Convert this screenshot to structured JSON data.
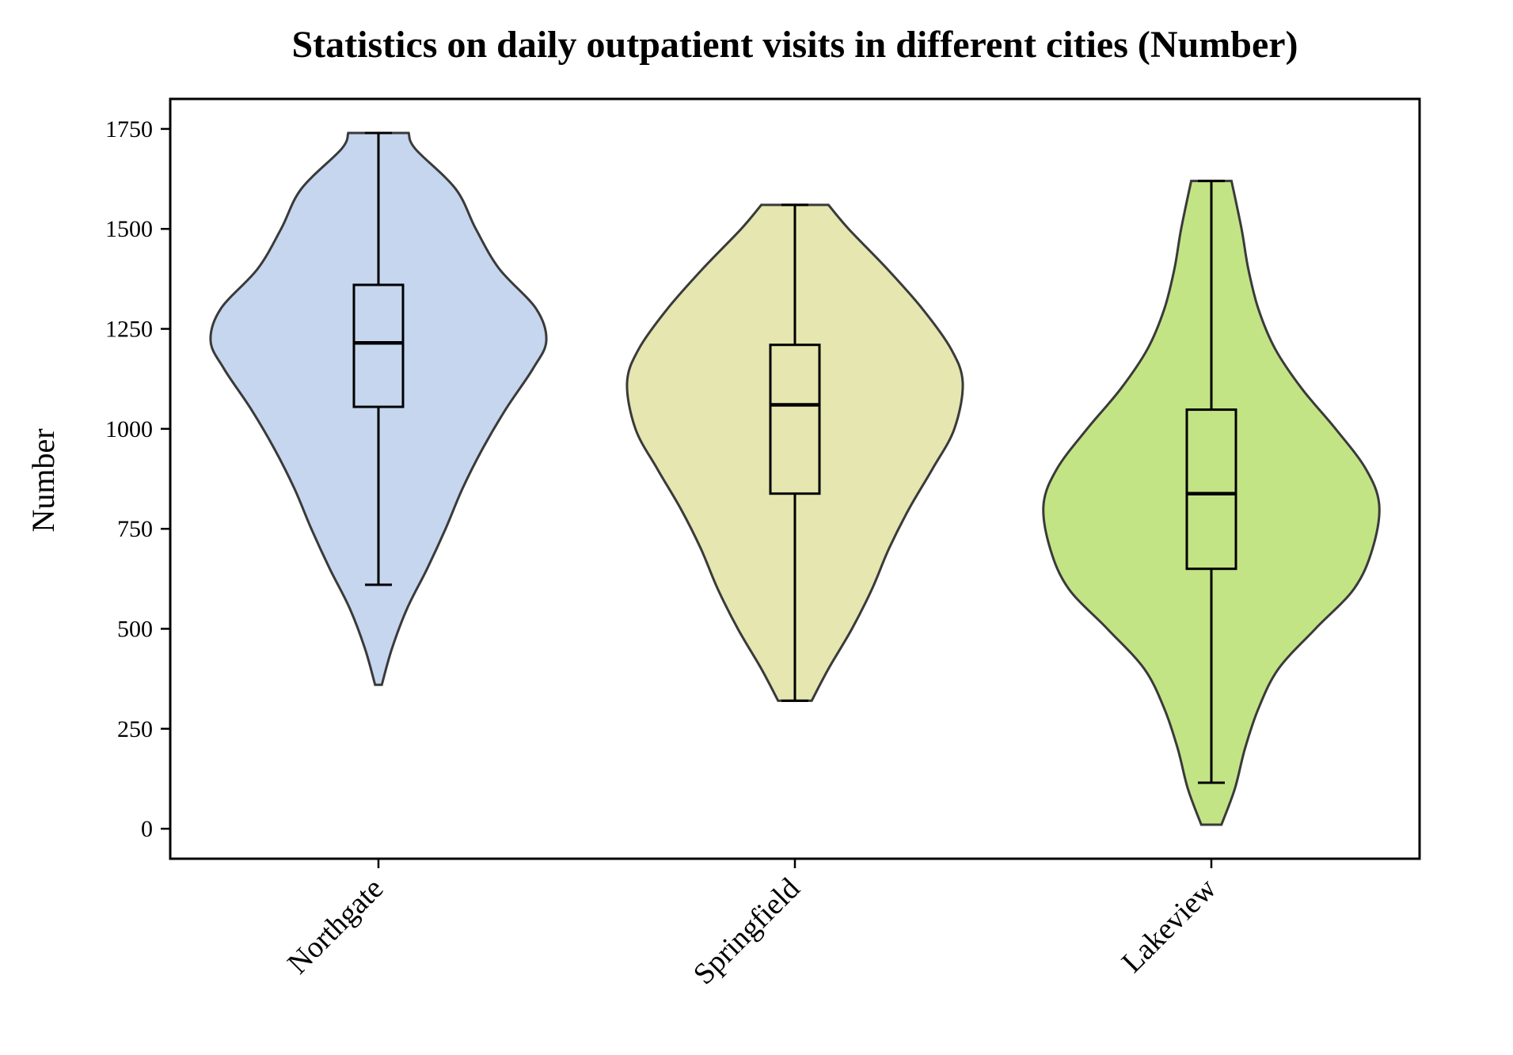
{
  "chart_data": {
    "type": "violin",
    "title": "Statistics on daily outpatient visits in different cities (Number)",
    "xlabel": "",
    "ylabel": "Number",
    "ylim": [
      -75,
      1825
    ],
    "yticks": [
      0,
      250,
      500,
      750,
      1000,
      1250,
      1500,
      1750
    ],
    "categories": [
      "Northgate",
      "Springfield",
      "Lakeview"
    ],
    "series": [
      {
        "category": "Northgate",
        "color": "#c5d6ee",
        "min": 360,
        "max": 1740,
        "whisker_low": 610,
        "whisker_high": 1740,
        "q1": 1055,
        "median": 1215,
        "q3": 1360,
        "density": [
          [
            360,
            0.02
          ],
          [
            450,
            0.08
          ],
          [
            550,
            0.17
          ],
          [
            650,
            0.29
          ],
          [
            750,
            0.4
          ],
          [
            850,
            0.5
          ],
          [
            950,
            0.62
          ],
          [
            1050,
            0.76
          ],
          [
            1150,
            0.92
          ],
          [
            1220,
            1.0
          ],
          [
            1300,
            0.94
          ],
          [
            1400,
            0.72
          ],
          [
            1500,
            0.58
          ],
          [
            1600,
            0.46
          ],
          [
            1700,
            0.22
          ],
          [
            1740,
            0.18
          ]
        ]
      },
      {
        "category": "Springfield",
        "color": "#e5e6b0",
        "min": 320,
        "max": 1560,
        "whisker_low": 320,
        "whisker_high": 1560,
        "q1": 838,
        "median": 1060,
        "q3": 1210,
        "density": [
          [
            320,
            0.1
          ],
          [
            400,
            0.2
          ],
          [
            500,
            0.34
          ],
          [
            600,
            0.46
          ],
          [
            700,
            0.56
          ],
          [
            800,
            0.68
          ],
          [
            900,
            0.82
          ],
          [
            1000,
            0.95
          ],
          [
            1115,
            1.0
          ],
          [
            1200,
            0.93
          ],
          [
            1300,
            0.76
          ],
          [
            1400,
            0.55
          ],
          [
            1500,
            0.32
          ],
          [
            1560,
            0.2
          ]
        ]
      },
      {
        "category": "Lakeview",
        "color": "#c3e485",
        "min": 10,
        "max": 1620,
        "whisker_low": 115,
        "whisker_high": 1620,
        "q1": 650,
        "median": 838,
        "q3": 1048,
        "density": [
          [
            10,
            0.06
          ],
          [
            100,
            0.14
          ],
          [
            200,
            0.2
          ],
          [
            300,
            0.28
          ],
          [
            400,
            0.4
          ],
          [
            500,
            0.62
          ],
          [
            600,
            0.85
          ],
          [
            700,
            0.96
          ],
          [
            810,
            1.0
          ],
          [
            900,
            0.92
          ],
          [
            1000,
            0.74
          ],
          [
            1100,
            0.54
          ],
          [
            1200,
            0.38
          ],
          [
            1300,
            0.28
          ],
          [
            1400,
            0.22
          ],
          [
            1500,
            0.18
          ],
          [
            1620,
            0.12
          ]
        ]
      }
    ]
  }
}
